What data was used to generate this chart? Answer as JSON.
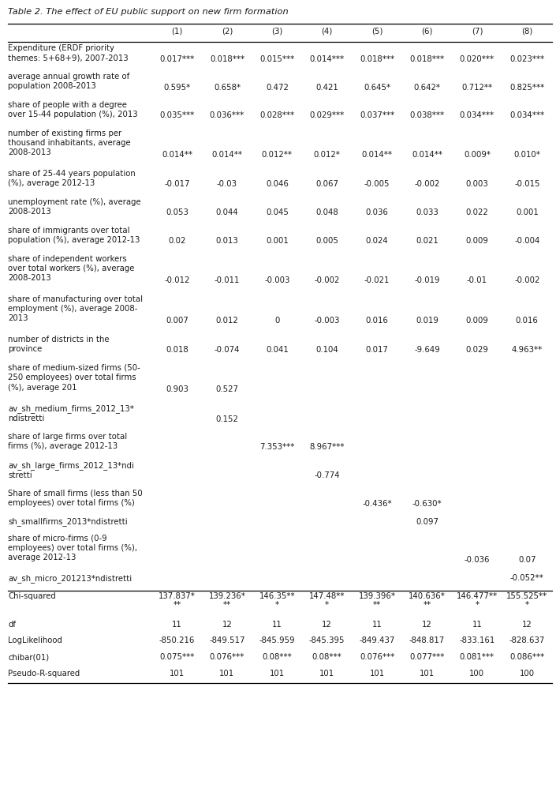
{
  "title": "Table 2. The effect of EU public support on new firm formation",
  "col_headers": [
    "(1)",
    "(2)",
    "(3)",
    "(4)",
    "(5)",
    "(6)",
    "(7)",
    "(8)"
  ],
  "rows": [
    {
      "label": "Expenditure (ERDF priority\nthemes: 5+68+9), 2007-2013",
      "values": [
        "0.017***",
        "0.018***",
        "0.015***",
        "0.014***",
        "0.018***",
        "0.018***",
        "0.020***",
        "0.023***"
      ],
      "n_label_lines": 2,
      "sep_above": false
    },
    {
      "label": "average annual growth rate of\npopulation 2008-2013",
      "values": [
        "0.595*",
        "0.658*",
        "0.472",
        "0.421",
        "0.645*",
        "0.642*",
        "0.712**",
        "0.825***"
      ],
      "n_label_lines": 2,
      "sep_above": false
    },
    {
      "label": "share of people with a degree\nover 15-44 population (%), 2013",
      "values": [
        "0.035***",
        "0.036***",
        "0.028***",
        "0.029***",
        "0.037***",
        "0.038***",
        "0.034***",
        "0.034***"
      ],
      "n_label_lines": 2,
      "sep_above": false
    },
    {
      "label": "number of existing firms per\nthousand inhabitants, average\n2008-2013",
      "values": [
        "0.014**",
        "0.014**",
        "0.012**",
        "0.012*",
        "0.014**",
        "0.014**",
        "0.009*",
        "0.010*"
      ],
      "n_label_lines": 3,
      "sep_above": false
    },
    {
      "label": "share of 25-44 years population\n(%), average 2012-13",
      "values": [
        "-0.017",
        "-0.03",
        "0.046",
        "0.067",
        "-0.005",
        "-0.002",
        "0.003",
        "-0.015"
      ],
      "n_label_lines": 2,
      "sep_above": false
    },
    {
      "label": "unemployment rate (%), average\n2008-2013",
      "values": [
        "0.053",
        "0.044",
        "0.045",
        "0.048",
        "0.036",
        "0.033",
        "0.022",
        "0.001"
      ],
      "n_label_lines": 2,
      "sep_above": false
    },
    {
      "label": "share of immigrants over total\npopulation (%), average 2012-13",
      "values": [
        "0.02",
        "0.013",
        "0.001",
        "0.005",
        "0.024",
        "0.021",
        "0.009",
        "-0.004"
      ],
      "n_label_lines": 2,
      "sep_above": false
    },
    {
      "label": "share of independent workers\nover total workers (%), average\n2008-2013",
      "values": [
        "-0.012",
        "-0.011",
        "-0.003",
        "-0.002",
        "-0.021",
        "-0.019",
        "-0.01",
        "-0.002"
      ],
      "n_label_lines": 3,
      "sep_above": false
    },
    {
      "label": "share of manufacturing over total\nemployment (%), average 2008-\n2013",
      "values": [
        "0.007",
        "0.012",
        "0",
        "-0.003",
        "0.016",
        "0.019",
        "0.009",
        "0.016"
      ],
      "n_label_lines": 3,
      "sep_above": false
    },
    {
      "label": "number of districts in the\nprovince",
      "values": [
        "0.018",
        "-0.074",
        "0.041",
        "0.104",
        "0.017",
        "-9.649",
        "0.029",
        "4.963**"
      ],
      "n_label_lines": 2,
      "sep_above": false
    },
    {
      "label": "share of medium-sized firms (50-\n250 employees) over total firms\n(%), average 201",
      "values": [
        "0.903",
        "0.527",
        "",
        "",
        "",
        "",
        "",
        ""
      ],
      "n_label_lines": 3,
      "sep_above": false
    },
    {
      "label": "av_sh_medium_firms_2012_13*\nndistretti",
      "values": [
        "",
        "0.152",
        "",
        "",
        "",
        "",
        "",
        ""
      ],
      "n_label_lines": 2,
      "sep_above": false
    },
    {
      "label": "share of large firms over total\nfirms (%), average 2012-13",
      "values": [
        "",
        "",
        "7.353***",
        "8.967***",
        "",
        "",
        "",
        ""
      ],
      "n_label_lines": 2,
      "sep_above": false
    },
    {
      "label": "av_sh_large_firms_2012_13*ndi\nstretti",
      "values": [
        "",
        "",
        "",
        "-0.774",
        "",
        "",
        "",
        ""
      ],
      "n_label_lines": 2,
      "sep_above": false
    },
    {
      "label": "Share of small firms (less than 50\nemployees) over total firms (%)",
      "values": [
        "",
        "",
        "",
        "",
        "-0.436*",
        "-0.630*",
        "",
        ""
      ],
      "n_label_lines": 2,
      "sep_above": false
    },
    {
      "label": "sh_smallfirms_2013*ndistretti",
      "values": [
        "",
        "",
        "",
        "",
        "",
        "0.097",
        "",
        ""
      ],
      "n_label_lines": 1,
      "sep_above": false
    },
    {
      "label": "share of micro-firms (0-9\nemployees) over total firms (%),\naverage 2012-13",
      "values": [
        "",
        "",
        "",
        "",
        "",
        "",
        "-0.036",
        "0.07"
      ],
      "n_label_lines": 3,
      "sep_above": false
    },
    {
      "label": "av_sh_micro_201213*ndistretti",
      "values": [
        "",
        "",
        "",
        "",
        "",
        "",
        "",
        "-0.052**"
      ],
      "n_label_lines": 1,
      "sep_above": false
    },
    {
      "label": "Chi-squared",
      "values": [
        "137.837*\n**",
        "139.236*\n**",
        "146.35**\n*",
        "147.48**\n*",
        "139.396*\n**",
        "140.636*\n**",
        "146.477**\n*",
        "155.525**\n*"
      ],
      "n_label_lines": 1,
      "sep_above": true
    },
    {
      "label": "df",
      "values": [
        "11",
        "12",
        "11",
        "12",
        "11",
        "12",
        "11",
        "12"
      ],
      "n_label_lines": 1,
      "sep_above": false
    },
    {
      "label": "LogLikelihood",
      "values": [
        "-850.216",
        "-849.517",
        "-845.959",
        "-845.395",
        "-849.437",
        "-848.817",
        "-833.161",
        "-828.637"
      ],
      "n_label_lines": 1,
      "sep_above": false
    },
    {
      "label": "chibar(01)",
      "values": [
        "0.075***",
        "0.076***",
        "0.08***",
        "0.08***",
        "0.076***",
        "0.077***",
        "0.081***",
        "0.086***"
      ],
      "n_label_lines": 1,
      "sep_above": false
    },
    {
      "label": "Pseudo-R-squared",
      "values": [
        "101",
        "101",
        "101",
        "101",
        "101",
        "101",
        "100",
        "100"
      ],
      "n_label_lines": 1,
      "sep_above": false
    }
  ],
  "bg": "#ffffff",
  "tc": "#1a1a1a",
  "fs": 7.3,
  "title_fs": 8.2
}
